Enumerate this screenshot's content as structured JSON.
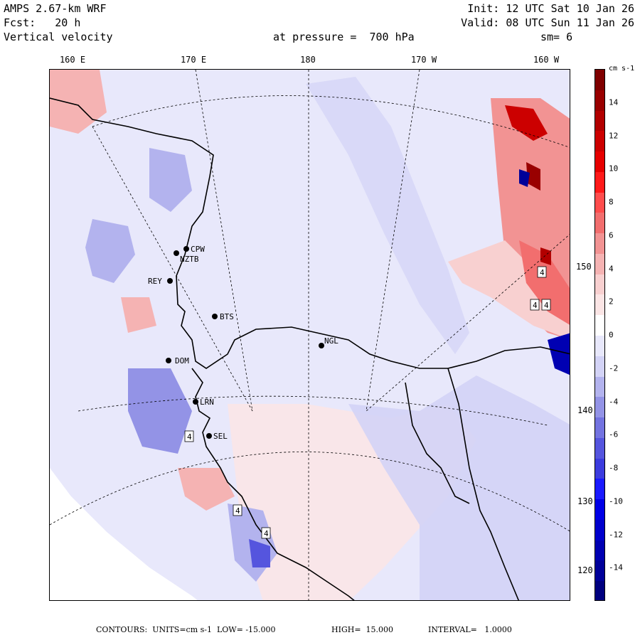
{
  "header": {
    "model": "AMPS 2.67-km WRF",
    "fcst": "Fcst:   20 h",
    "field": "Vertical velocity",
    "init": "Init: 12 UTC Sat 10 Jan 26",
    "valid": "Valid: 08 UTC Sun 11 Jan 26",
    "pressure": "at pressure =  700 hPa",
    "sm": "sm= 6"
  },
  "lon_labels": [
    "160 E",
    "170 E",
    "180",
    "170 W",
    "160 W"
  ],
  "lat_labels": [
    "150 W",
    "140 W",
    "130 W",
    "120 W"
  ],
  "stations": [
    "CPW",
    "NZTB",
    "REY",
    "BTS",
    "NGL",
    "DOM",
    "LRN",
    "SEL"
  ],
  "contour_marks": [
    "4",
    "4",
    "4",
    "4",
    "4",
    "4"
  ],
  "colorbar": {
    "unit": "cm s-1",
    "ticks": [
      "14",
      "12",
      "10",
      "8",
      "6",
      "4",
      "2",
      "0",
      "-2",
      "-4",
      "-6",
      "-8",
      "-10",
      "-12",
      "-14"
    ],
    "min": -16,
    "max": 16,
    "colors": [
      "#7f0000",
      "#990000",
      "#b20000",
      "#cc0000",
      "#e60000",
      "#ff1a1a",
      "#ff4d4d",
      "#f26e6e",
      "#f29393",
      "#f5b3b3",
      "#f8d0d0",
      "#fbe5e5",
      "#ffffff",
      "#e8e8fb",
      "#d3d3f6",
      "#b3b3ee",
      "#9393e6",
      "#7373e0",
      "#5555de",
      "#3c3cde",
      "#1a1aff",
      "#0000e6",
      "#0000cc",
      "#0000b2",
      "#000099",
      "#00007f"
    ]
  },
  "footer": {
    "contours": "CONTOURS:  UNITS=cm s-1  LOW= -15.000",
    "high": "HIGH=  15.000",
    "interval": "INTERVAL=   1.0000"
  }
}
